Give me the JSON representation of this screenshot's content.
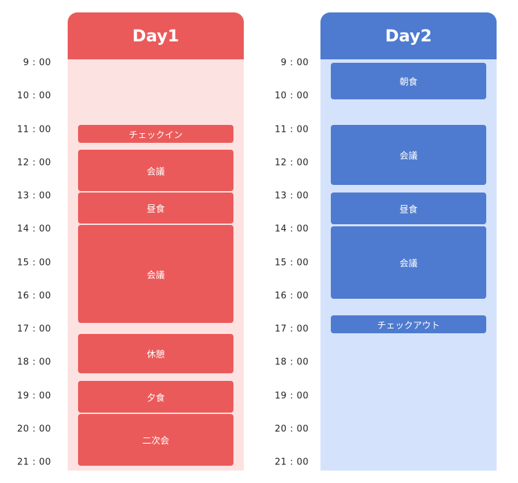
{
  "times": [
    "9 : 00",
    "10 : 00",
    "11 : 00",
    "12 : 00",
    "13 : 00",
    "14 : 00",
    "15 : 00",
    "16 : 00",
    "17 : 00",
    "18 : 00",
    "19 : 00",
    "20 : 00",
    "21 : 00"
  ],
  "days": [
    {
      "title": "Day1",
      "events": [
        {
          "label": "チェックイン"
        },
        {
          "label": "会議"
        },
        {
          "label": "昼食"
        },
        {
          "label": "会議"
        },
        {
          "label": "休憩"
        },
        {
          "label": "夕食"
        },
        {
          "label": "二次会"
        }
      ]
    },
    {
      "title": "Day2",
      "events": [
        {
          "label": "朝食"
        },
        {
          "label": "会議"
        },
        {
          "label": "昼食"
        },
        {
          "label": "会議"
        },
        {
          "label": "チェックアウト"
        }
      ]
    }
  ]
}
